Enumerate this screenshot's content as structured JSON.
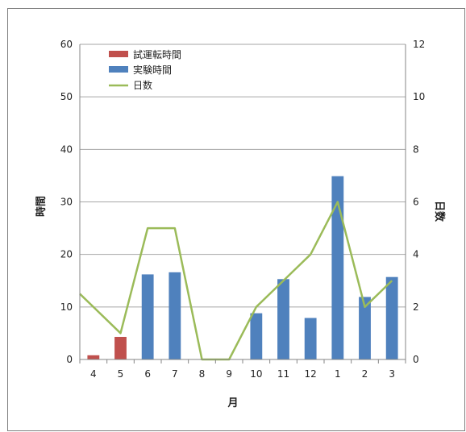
{
  "chart_data": {
    "type": "bar+line",
    "categories": [
      "4",
      "5",
      "6",
      "7",
      "8",
      "9",
      "10",
      "11",
      "12",
      "1",
      "2",
      "3"
    ],
    "series": [
      {
        "name": "試運転時間",
        "type": "bar",
        "axis": "left",
        "color": "#c0504d",
        "values": [
          0.8,
          4.3,
          null,
          null,
          null,
          null,
          null,
          null,
          null,
          null,
          null,
          null
        ]
      },
      {
        "name": "実験時間",
        "type": "bar",
        "axis": "left",
        "color": "#4f81bd",
        "values": [
          null,
          null,
          16.2,
          16.6,
          null,
          null,
          8.8,
          15.3,
          7.9,
          34.9,
          11.9,
          15.7
        ]
      },
      {
        "name": "日数",
        "type": "line",
        "axis": "right",
        "color": "#9bbb59",
        "values": [
          2.5,
          1,
          5,
          5,
          0,
          0,
          2,
          3,
          4,
          6,
          2,
          3
        ]
      }
    ],
    "xlabel": "月",
    "ylabel": "時間",
    "y2label": "日数",
    "ylim": [
      0,
      60
    ],
    "yticks": [
      "0",
      "10",
      "20",
      "30",
      "40",
      "50",
      "60"
    ],
    "y2lim": [
      0,
      12
    ],
    "y2ticks": [
      "0",
      "2",
      "4",
      "6",
      "8",
      "10",
      "12"
    ],
    "grid": true,
    "legend_position": "top-left"
  }
}
